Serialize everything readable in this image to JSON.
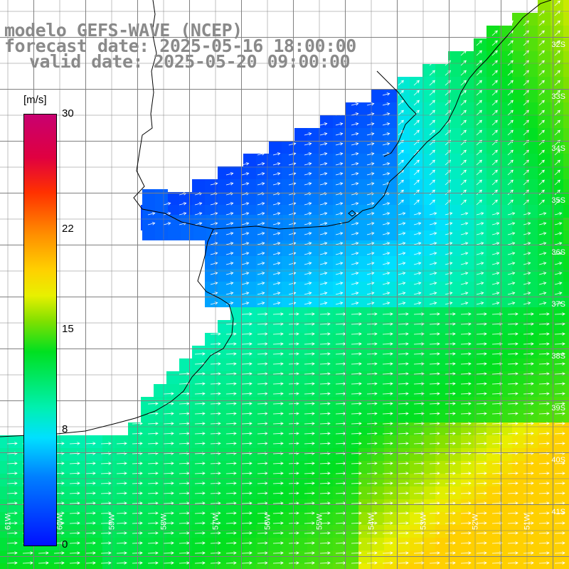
{
  "title": {
    "line1": "modelo GEFS-WAVE (NCEP)",
    "line2": "forecast date: 2025-05-16 18:00:00",
    "line3": "valid date: 2025-05-20 09:00:00"
  },
  "colorbar": {
    "unit": "[m/s]",
    "ticks": [
      {
        "value": 30,
        "label": "30"
      },
      {
        "value": 22,
        "label": "22"
      },
      {
        "value": 15,
        "label": "15"
      },
      {
        "value": 8,
        "label": "8"
      },
      {
        "value": 0,
        "label": "0"
      }
    ],
    "range": [
      0,
      30
    ]
  },
  "lat_labels": [
    {
      "lat": -32,
      "label": "32S"
    },
    {
      "lat": -33,
      "label": "33S"
    },
    {
      "lat": -34,
      "label": "34S"
    },
    {
      "lat": -35,
      "label": "35S"
    },
    {
      "lat": -36,
      "label": "36S"
    },
    {
      "lat": -37,
      "label": "37S"
    },
    {
      "lat": -38,
      "label": "38S"
    },
    {
      "lat": -39,
      "label": "39S"
    },
    {
      "lat": -40,
      "label": "40S"
    },
    {
      "lat": -41,
      "label": "41S"
    }
  ],
  "lon_labels": [
    {
      "lon": -61,
      "label": "61W"
    },
    {
      "lon": -60,
      "label": "60W"
    },
    {
      "lon": -59,
      "label": "59W"
    },
    {
      "lon": -58,
      "label": "58W"
    },
    {
      "lon": -57,
      "label": "57W"
    },
    {
      "lon": -56,
      "label": "56W"
    },
    {
      "lon": -55,
      "label": "55W"
    },
    {
      "lon": -54,
      "label": "54W"
    },
    {
      "lon": -53,
      "label": "53W"
    },
    {
      "lon": -52,
      "label": "52W"
    },
    {
      "lon": -51,
      "label": "51W"
    }
  ],
  "colors": {
    "land": "#ffffff",
    "grid": "#808080",
    "coast": "#000000",
    "arrows": "#ffffff",
    "title": "#8a8a8a"
  }
}
